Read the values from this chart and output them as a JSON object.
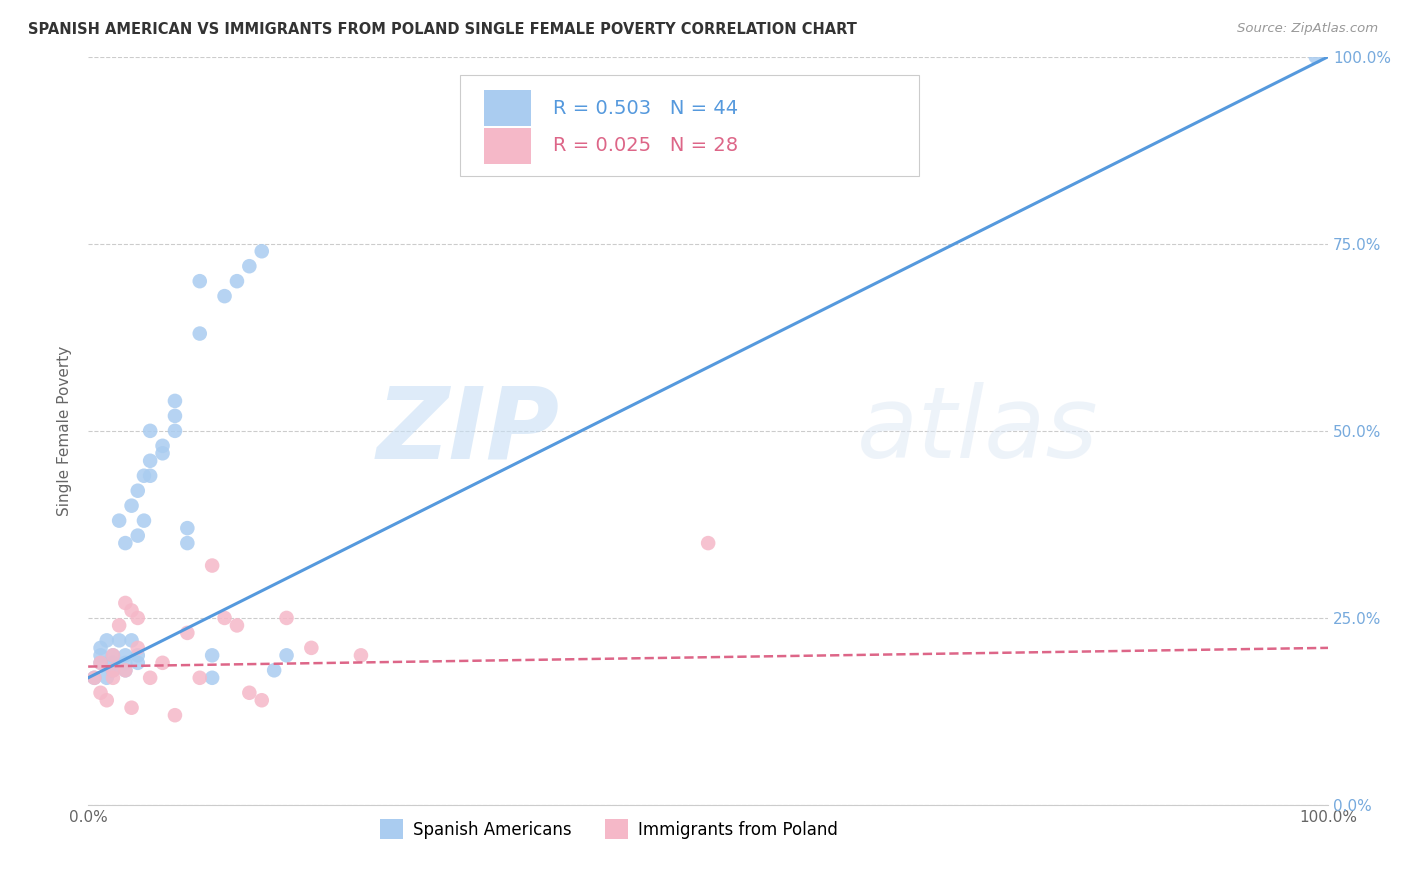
{
  "title": "SPANISH AMERICAN VS IMMIGRANTS FROM POLAND SINGLE FEMALE POVERTY CORRELATION CHART",
  "source": "Source: ZipAtlas.com",
  "ylabel": "Single Female Poverty",
  "xlim": [
    0,
    1
  ],
  "ylim": [
    0,
    1
  ],
  "xtick_labels": [
    "0.0%",
    "100.0%"
  ],
  "ytick_labels": [
    "0.0%",
    "25.0%",
    "50.0%",
    "75.0%",
    "100.0%"
  ],
  "ytick_positions": [
    0.0,
    0.25,
    0.5,
    0.75,
    1.0
  ],
  "watermark_zip": "ZIP",
  "watermark_atlas": "atlas",
  "legend_line1": "R = 0.503   N = 44",
  "legend_line2": "R = 0.025   N = 28",
  "series1_label": "Spanish Americans",
  "series2_label": "Immigrants from Poland",
  "color_blue": "#aaccf0",
  "color_pink": "#f5b8c8",
  "color_blue_line": "#5599dd",
  "color_pink_line": "#dd6688",
  "color_blue_text": "#5599dd",
  "color_pink_text": "#dd6688",
  "color_axis_text": "#666666",
  "color_grid": "#cccccc",
  "color_right_axis_text": "#77aadd",
  "blue_x": [
    0.005,
    0.01,
    0.01,
    0.01,
    0.015,
    0.015,
    0.02,
    0.02,
    0.02,
    0.025,
    0.025,
    0.03,
    0.03,
    0.03,
    0.03,
    0.035,
    0.035,
    0.04,
    0.04,
    0.04,
    0.04,
    0.045,
    0.045,
    0.05,
    0.05,
    0.05,
    0.06,
    0.06,
    0.07,
    0.07,
    0.07,
    0.08,
    0.08,
    0.09,
    0.09,
    0.1,
    0.1,
    0.11,
    0.12,
    0.13,
    0.14,
    0.15,
    0.16,
    0.99
  ],
  "blue_y": [
    0.17,
    0.19,
    0.2,
    0.21,
    0.17,
    0.22,
    0.18,
    0.19,
    0.2,
    0.22,
    0.38,
    0.18,
    0.19,
    0.2,
    0.35,
    0.22,
    0.4,
    0.19,
    0.2,
    0.36,
    0.42,
    0.38,
    0.44,
    0.44,
    0.46,
    0.5,
    0.47,
    0.48,
    0.5,
    0.52,
    0.54,
    0.35,
    0.37,
    0.63,
    0.7,
    0.17,
    0.2,
    0.68,
    0.7,
    0.72,
    0.74,
    0.18,
    0.2,
    1.0
  ],
  "pink_x": [
    0.005,
    0.01,
    0.01,
    0.015,
    0.02,
    0.02,
    0.02,
    0.025,
    0.03,
    0.03,
    0.035,
    0.035,
    0.04,
    0.04,
    0.05,
    0.06,
    0.07,
    0.08,
    0.09,
    0.1,
    0.11,
    0.12,
    0.13,
    0.14,
    0.16,
    0.18,
    0.22,
    0.5
  ],
  "pink_y": [
    0.17,
    0.15,
    0.19,
    0.14,
    0.17,
    0.18,
    0.2,
    0.24,
    0.18,
    0.27,
    0.13,
    0.26,
    0.21,
    0.25,
    0.17,
    0.19,
    0.12,
    0.23,
    0.17,
    0.32,
    0.25,
    0.24,
    0.15,
    0.14,
    0.25,
    0.21,
    0.2,
    0.35
  ],
  "blue_trendline_x": [
    0.0,
    1.0
  ],
  "blue_trendline_y": [
    0.17,
    1.0
  ],
  "pink_trendline_x": [
    0.0,
    1.0
  ],
  "pink_trendline_y": [
    0.185,
    0.21
  ]
}
